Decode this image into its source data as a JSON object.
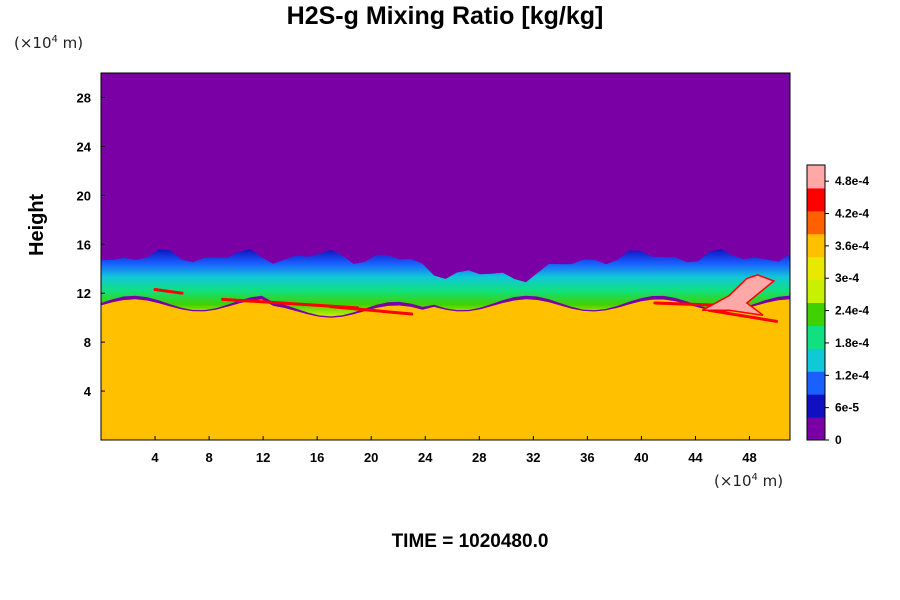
{
  "chart_data": {
    "type": "heatmap",
    "title": "H2S-g Mixing Ratio [kg/kg]",
    "ylabel": "Height",
    "xunit": {
      "base": "(×10",
      "exp": "4",
      "rest": " m)"
    },
    "yunit": {
      "base": "(×10",
      "exp": "4",
      "rest": " m)"
    },
    "xlim": [
      0,
      51
    ],
    "ylim": [
      0,
      30
    ],
    "xticks": [
      4,
      8,
      12,
      16,
      20,
      24,
      28,
      32,
      36,
      40,
      44,
      48
    ],
    "yticks": [
      4,
      8,
      12,
      16,
      20,
      24,
      28
    ],
    "colorbar": {
      "ticks": [
        "0",
        "6e-5",
        "1.2e-4",
        "1.8e-4",
        "2.4e-4",
        "3e-4",
        "3.6e-4",
        "4.2e-4",
        "4.8e-4"
      ],
      "values": [
        0,
        6e-05,
        0.00012,
        0.00018,
        0.00024,
        0.0003,
        0.00036,
        0.00042,
        0.00048
      ],
      "range": [
        0,
        0.00051
      ],
      "colors": [
        "#7a00a6",
        "#1010c0",
        "#1a60ff",
        "#10c8d8",
        "#10e080",
        "#40d000",
        "#c8f000",
        "#e8e800",
        "#ffc000",
        "#ff6000",
        "#ff0000",
        "#ffa8a8"
      ]
    },
    "regions": {
      "upper_value": 0,
      "lower_value": 0.00034,
      "mixing_layer_top_approx": 15,
      "plume": {
        "x_range": [
          45,
          50
        ],
        "y_range": [
          10,
          13.5
        ],
        "value": 0.00051
      }
    },
    "time_label": "TIME = 1020480.0"
  }
}
